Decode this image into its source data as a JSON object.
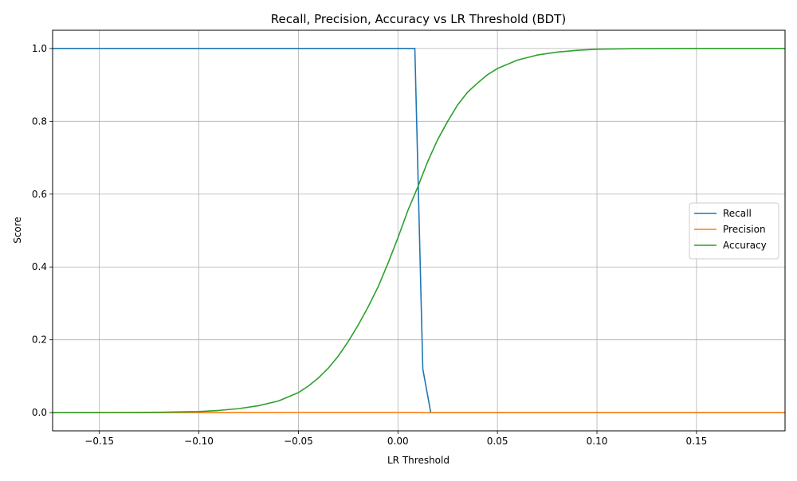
{
  "chart_data": {
    "type": "line",
    "title": "Recall, Precision, Accuracy vs LR Threshold (BDT)",
    "xlabel": "LR Threshold",
    "ylabel": "Score",
    "xlim": [
      -0.1735,
      0.1945
    ],
    "ylim": [
      -0.05,
      1.05
    ],
    "xticks": [
      -0.15,
      -0.1,
      -0.05,
      0.0,
      0.05,
      0.1,
      0.15
    ],
    "xtick_labels": [
      "−0.15",
      "−0.10",
      "−0.05",
      "0.00",
      "0.05",
      "0.10",
      "0.15"
    ],
    "yticks": [
      0.0,
      0.2,
      0.4,
      0.6,
      0.8,
      1.0
    ],
    "ytick_labels": [
      "0.0",
      "0.2",
      "0.4",
      "0.6",
      "0.8",
      "1.0"
    ],
    "grid": true,
    "legend_position": "center-right",
    "series": [
      {
        "name": "Recall",
        "color": "#1f77b4",
        "points": [
          [
            -0.1735,
            1.0
          ],
          [
            0.0085,
            1.0
          ],
          [
            0.0125,
            0.12
          ],
          [
            0.0165,
            0.0
          ],
          [
            0.1945,
            0.0
          ]
        ]
      },
      {
        "name": "Precision",
        "color": "#ff7f0e",
        "points": [
          [
            -0.1735,
            0.0
          ],
          [
            0.0,
            0.0005
          ],
          [
            0.0085,
            0.0005
          ],
          [
            0.0125,
            0.0
          ],
          [
            0.1945,
            0.0
          ]
        ]
      },
      {
        "name": "Accuracy",
        "color": "#2ca02c",
        "points": [
          [
            -0.1735,
            0.0
          ],
          [
            -0.15,
            0.0
          ],
          [
            -0.12,
            0.001
          ],
          [
            -0.1,
            0.003
          ],
          [
            -0.09,
            0.006
          ],
          [
            -0.08,
            0.011
          ],
          [
            -0.07,
            0.019
          ],
          [
            -0.06,
            0.032
          ],
          [
            -0.05,
            0.055
          ],
          [
            -0.045,
            0.073
          ],
          [
            -0.04,
            0.095
          ],
          [
            -0.035,
            0.122
          ],
          [
            -0.03,
            0.155
          ],
          [
            -0.025,
            0.195
          ],
          [
            -0.02,
            0.24
          ],
          [
            -0.015,
            0.29
          ],
          [
            -0.01,
            0.345
          ],
          [
            -0.005,
            0.41
          ],
          [
            0.0,
            0.48
          ],
          [
            0.005,
            0.555
          ],
          [
            0.01,
            0.62
          ],
          [
            0.015,
            0.69
          ],
          [
            0.02,
            0.75
          ],
          [
            0.025,
            0.8
          ],
          [
            0.03,
            0.845
          ],
          [
            0.035,
            0.88
          ],
          [
            0.04,
            0.905
          ],
          [
            0.045,
            0.928
          ],
          [
            0.05,
            0.945
          ],
          [
            0.06,
            0.968
          ],
          [
            0.07,
            0.982
          ],
          [
            0.08,
            0.99
          ],
          [
            0.09,
            0.995
          ],
          [
            0.1,
            0.998
          ],
          [
            0.12,
            0.9995
          ],
          [
            0.15,
            1.0
          ],
          [
            0.1945,
            1.0
          ]
        ]
      }
    ]
  }
}
